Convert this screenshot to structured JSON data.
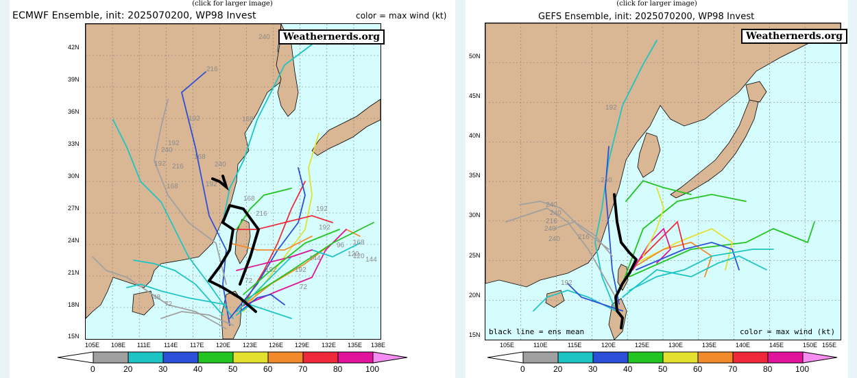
{
  "left": {
    "click_note": "(click for larger image)",
    "title": "ECMWF Ensemble, init: 2025070200, WP98 Invest",
    "color_note": "color = max wind (kt)",
    "watermark": "Weathernerds.org",
    "lat_labels": [
      "42N",
      "39N",
      "36N",
      "33N",
      "30N",
      "27N",
      "24N",
      "21N",
      "18N",
      "15N"
    ],
    "lon_labels": [
      "105E",
      "108E",
      "111E",
      "114E",
      "117E",
      "120E",
      "123E",
      "126E",
      "129E",
      "132E",
      "135E",
      "138E"
    ],
    "legend_ticks": [
      "0",
      "20",
      "30",
      "40",
      "50",
      "60",
      "70",
      "80",
      "100"
    ],
    "hour_labels": [
      "240",
      "216",
      "192",
      "168",
      "240",
      "192",
      "192",
      "216",
      "168",
      "192",
      "168",
      "240",
      "168",
      "192",
      "192",
      "192",
      "120",
      "96",
      "168",
      "144",
      "144",
      "216",
      "72",
      "120",
      "192",
      "72",
      "48",
      "72"
    ]
  },
  "right": {
    "click_note": "(click for larger image)",
    "title": "GEFS Ensemble, init: 2025070200, WP98 Invest",
    "watermark": "Weathernerds.org",
    "ens_note": "black line = ens mean",
    "color_note": "color = max wind (kt)",
    "lat_labels": [
      "50N",
      "45N",
      "40N",
      "35N",
      "30N",
      "25N",
      "20N",
      "15N"
    ],
    "lon_labels": [
      "105E",
      "110E",
      "115E",
      "120E",
      "125E",
      "130E",
      "135E",
      "140E",
      "145E",
      "150E",
      "155E"
    ],
    "legend_ticks": [
      "0",
      "20",
      "30",
      "40",
      "50",
      "60",
      "70",
      "80",
      "100"
    ],
    "hour_labels": [
      "192",
      "240",
      "240",
      "216",
      "240",
      "216",
      "240",
      "192",
      "240"
    ]
  },
  "colors": {
    "ocean": "#d6fdfd",
    "land": "#d9b795",
    "c0": "#a0a0a0",
    "c20": "#1ec4c4",
    "c30": "#2b4fd6",
    "c40": "#22c422",
    "c50": "#e4e030",
    "c60": "#f08a2a",
    "c70": "#ee2a3a",
    "c80": "#e0149a",
    "c100": "#f58ef0",
    "mean": "#000000"
  }
}
